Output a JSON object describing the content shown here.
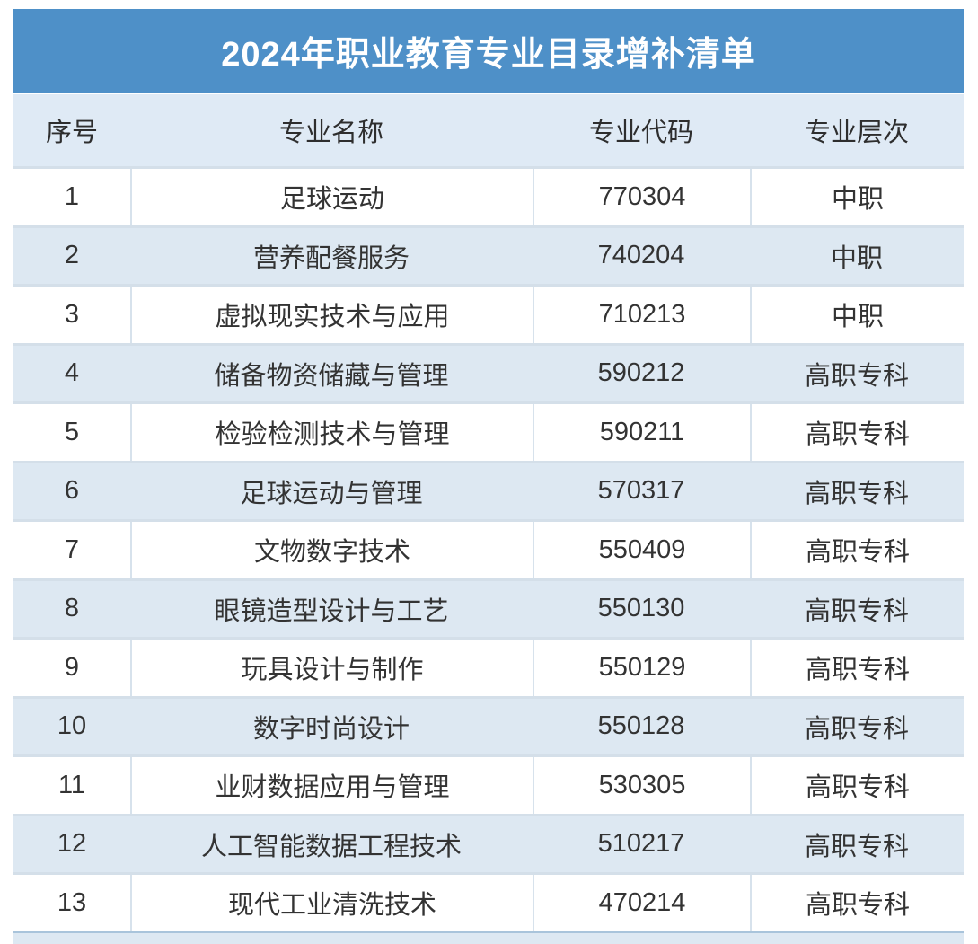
{
  "chart_data": {
    "type": "table",
    "title": "2024年职业教育专业目录增补清单",
    "columns": [
      "序号",
      "专业名称",
      "专业代码",
      "专业层次"
    ],
    "rows": [
      [
        "1",
        "足球运动",
        "770304",
        "中职"
      ],
      [
        "2",
        "营养配餐服务",
        "740204",
        "中职"
      ],
      [
        "3",
        "虚拟现实技术与应用",
        "710213",
        "中职"
      ],
      [
        "4",
        "储备物资储藏与管理",
        "590212",
        "高职专科"
      ],
      [
        "5",
        "检验检测技术与管理",
        "590211",
        "高职专科"
      ],
      [
        "6",
        "足球运动与管理",
        "570317",
        "高职专科"
      ],
      [
        "7",
        "文物数字技术",
        "550409",
        "高职专科"
      ],
      [
        "8",
        "眼镜造型设计与工艺",
        "550130",
        "高职专科"
      ],
      [
        "9",
        "玩具设计与制作",
        "550129",
        "高职专科"
      ],
      [
        "10",
        "数字时尚设计",
        "550128",
        "高职专科"
      ],
      [
        "11",
        "业财数据应用与管理",
        "530305",
        "高职专科"
      ],
      [
        "12",
        "人工智能数据工程技术",
        "510217",
        "高职专科"
      ],
      [
        "13",
        "现代工业清洗技术",
        "470214",
        "高职专科"
      ]
    ],
    "layout": {
      "header_position": "top-banner",
      "zebra_striping": true,
      "striped_rows": "even"
    }
  },
  "colors": {
    "banner_background": "#4e90c8",
    "title_text": "#ffffff",
    "header_row_background": "#dfeaf5",
    "alt_row_background": "#dde8f2",
    "white_row_background": "#ffffff",
    "row_border": "#d4dfe9",
    "body_text": "#333333"
  }
}
